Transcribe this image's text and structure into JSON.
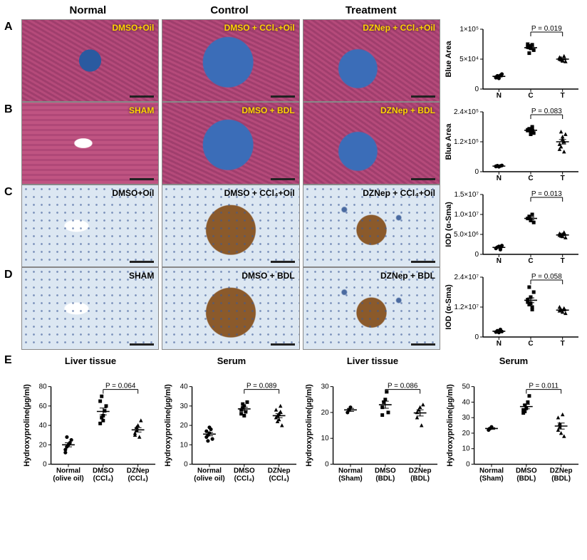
{
  "columns": [
    "Normal",
    "Control",
    "Treatment"
  ],
  "rows": {
    "A": {
      "overlays": [
        "DMSO+Oil",
        "DMSO + CCl₄+Oil",
        "DZNep + CCl₄+Oil"
      ],
      "overlay_color": "#ffd400",
      "chart": {
        "ylabel": "Blue Area",
        "yticks": [
          0,
          50000,
          100000
        ],
        "yticklabels": [
          "0",
          "5×10⁴",
          "1×10⁵"
        ],
        "groups": [
          "N",
          "C",
          "T"
        ],
        "pval": "P = 0.019",
        "pval_between": [
          1,
          2
        ],
        "points": {
          "N": [
            20000,
            22000,
            18000,
            23000,
            25000,
            19000
          ],
          "C": [
            70000,
            72000,
            68000,
            74000,
            65000,
            75000,
            60000
          ],
          "T": [
            50000,
            52000,
            48000,
            55000,
            46000,
            53000,
            49000,
            47000
          ]
        },
        "markers": {
          "N": "circle",
          "C": "square",
          "T": "triangle"
        }
      }
    },
    "B": {
      "overlays": [
        "SHAM",
        "DMSO + BDL",
        "DZNep + BDL"
      ],
      "overlay_color": "#ffd400",
      "chart": {
        "ylabel": "Blue Area",
        "yticks": [
          0,
          120000,
          240000
        ],
        "yticklabels": [
          "0",
          "1.2×10⁵",
          "2.4×10⁵"
        ],
        "groups": [
          "N",
          "C",
          "T"
        ],
        "pval": "P = 0.083",
        "pval_between": [
          1,
          2
        ],
        "points": {
          "N": [
            22000,
            24000,
            20000,
            23000,
            25000,
            21000
          ],
          "C": [
            165000,
            170000,
            160000,
            175000,
            155000,
            168000,
            172000,
            150000,
            180000
          ],
          "T": [
            110000,
            100000,
            140000,
            80000,
            150000,
            90000,
            160000,
            130000,
            120000
          ]
        },
        "markers": {
          "N": "circle",
          "C": "square",
          "T": "triangle"
        }
      }
    },
    "C": {
      "overlays": [
        "DMSO+Oil",
        "DMSO + CCl₄+Oil",
        "DZNep + CCl₄+Oil"
      ],
      "overlay_color": "#000000",
      "chart": {
        "ylabel": "IOD (α-Sma)",
        "yticks": [
          0,
          5000000,
          10000000,
          15000000
        ],
        "yticklabels": [
          "0",
          "5.0×10⁶",
          "1.0×10⁷",
          "1.5×10⁷"
        ],
        "groups": [
          "N",
          "C",
          "T"
        ],
        "pval": "P = 0.013",
        "pval_between": [
          1,
          2
        ],
        "points": {
          "N": [
            1500000,
            1800000,
            2000000,
            1200000,
            2200000
          ],
          "C": [
            9000000,
            9500000,
            8500000,
            10000000,
            8000000
          ],
          "T": [
            4800000,
            5000000,
            4500000,
            5500000,
            4200000,
            5200000,
            4600000,
            5000000
          ]
        },
        "markers": {
          "N": "circle",
          "C": "square",
          "T": "triangle"
        }
      }
    },
    "D": {
      "overlays": [
        "SHAM",
        "DMSO + BDL",
        "DZNep + BDL"
      ],
      "overlay_color": "#000000",
      "chart": {
        "ylabel": "IOD (α-Sma)",
        "yticks": [
          0,
          12000000,
          24000000
        ],
        "yticklabels": [
          "0",
          "1.2×10⁷",
          "2.4×10⁷"
        ],
        "groups": [
          "N",
          "C",
          "T"
        ],
        "pval": "P = 0.058",
        "pval_between": [
          1,
          2
        ],
        "points": {
          "N": [
            2000000,
            2500000,
            1800000,
            3000000,
            2200000
          ],
          "C": [
            14000000,
            13000000,
            16000000,
            12000000,
            18000000,
            15000000,
            20000000,
            13500000,
            11000000
          ],
          "T": [
            10500000,
            11000000,
            10000000,
            11500000,
            9500000,
            12000000,
            10800000
          ]
        },
        "markers": {
          "N": "circle",
          "C": "square",
          "T": "triangle"
        }
      }
    }
  },
  "rowE": {
    "label": "E",
    "panels": [
      {
        "title": "Liver tissue",
        "ylabel": "Hydroxyproline(µg/ml)",
        "yticks": [
          0,
          20,
          40,
          60,
          80
        ],
        "groups": [
          "Normal\n(olive oil)",
          "DMSO\n(CCl₄)",
          "DZNep\n(CCl₄)"
        ],
        "pval": "P = 0.064",
        "pval_between": [
          1,
          2
        ],
        "points": {
          "0": [
            15,
            18,
            20,
            22,
            25,
            12,
            28
          ],
          "1": [
            42,
            48,
            50,
            55,
            60,
            65,
            70,
            45
          ],
          "2": [
            30,
            35,
            40,
            28,
            45,
            32,
            38
          ]
        },
        "markers": {
          "0": "circle",
          "1": "square",
          "2": "triangle"
        }
      },
      {
        "title": "Serum",
        "ylabel": "Hydroxyproline(µg/ml)",
        "yticks": [
          0,
          10,
          20,
          30,
          40
        ],
        "groups": [
          "Normal\n(olive oil)",
          "DMSO\n(CCl₄)",
          "DZNep\n(CCl₄)"
        ],
        "pval": "P = 0.089",
        "pval_between": [
          1,
          2
        ],
        "points": {
          "0": [
            14,
            15,
            16,
            18,
            13,
            17,
            12,
            19
          ],
          "1": [
            28,
            29,
            30,
            27,
            32,
            26,
            31,
            25
          ],
          "2": [
            24,
            25,
            23,
            30,
            20,
            28,
            22,
            26,
            27
          ]
        },
        "markers": {
          "0": "circle",
          "1": "square",
          "2": "triangle"
        }
      },
      {
        "title": "Liver tissue",
        "ylabel": "Hydroxyproline(µg/ml)",
        "yticks": [
          0,
          10,
          20,
          30
        ],
        "groups": [
          "Normal\n(Sham)",
          "DMSO\n(BDL)",
          "DZNep\n(BDL)"
        ],
        "pval": "P = 0.086",
        "pval_between": [
          1,
          2
        ],
        "points": {
          "0": [
            20,
            21,
            22
          ],
          "1": [
            22,
            24,
            25,
            28,
            20,
            19
          ],
          "2": [
            20,
            21,
            22,
            15,
            23,
            18
          ]
        },
        "markers": {
          "0": "circle",
          "1": "square",
          "2": "triangle"
        }
      },
      {
        "title": "Serum",
        "ylabel": "Hydroxyproline(µg/ml)",
        "yticks": [
          0,
          10,
          20,
          30,
          40,
          50
        ],
        "groups": [
          "Normal\n(Sham)",
          "DMSO\n(BDL)",
          "DZNep\n(BDL)"
        ],
        "pval": "P = 0.011",
        "pval_between": [
          1,
          2
        ],
        "points": {
          "0": [
            22,
            23,
            24
          ],
          "1": [
            35,
            38,
            36,
            40,
            44,
            33,
            34
          ],
          "2": [
            22,
            24,
            20,
            32,
            18,
            30,
            26
          ]
        },
        "markers": {
          "0": "circle",
          "1": "square",
          "2": "triangle"
        }
      }
    ]
  },
  "style": {
    "marker_fill": "#000000",
    "marker_open": "#ffffff",
    "axis_color": "#000000",
    "err_color": "#000000"
  }
}
